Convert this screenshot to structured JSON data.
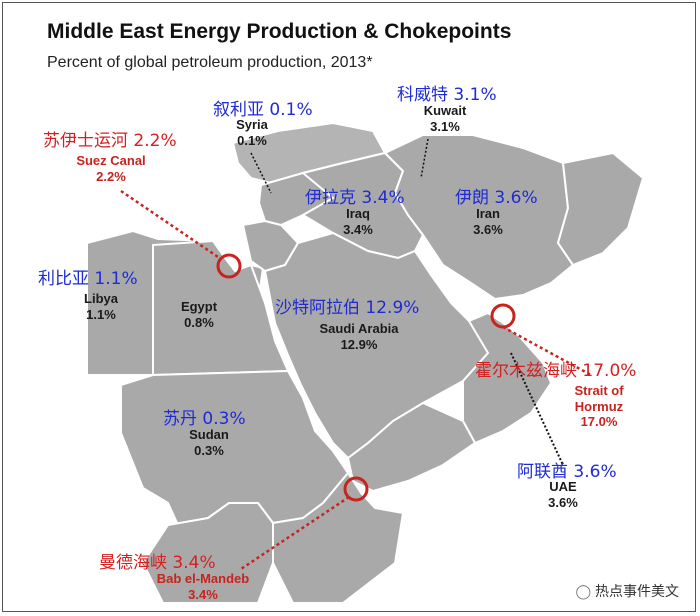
{
  "title": "Middle East Energy Production & Chokepoints",
  "subtitle": "Percent of global petroleum production, 2013*",
  "countries": {
    "syria": {
      "cn": "叙利亚 0.1%",
      "name": "Syria",
      "value": "0.1%"
    },
    "kuwait": {
      "cn": "科威特 3.1%",
      "name": "Kuwait",
      "value": "3.1%"
    },
    "iraq": {
      "cn": "伊拉克 3.4%",
      "name": "Iraq",
      "value": "3.4%"
    },
    "iran": {
      "cn": "伊朗 3.6%",
      "name": "Iran",
      "value": "3.6%"
    },
    "libya": {
      "cn": "利比亚 1.1%",
      "name": "Libya",
      "value": "1.1%"
    },
    "egypt": {
      "name": "Egypt",
      "value": "0.8%"
    },
    "saudi": {
      "cn": "沙特阿拉伯 12.9%",
      "name": "Saudi Arabia",
      "value": "12.9%"
    },
    "sudan": {
      "cn": "苏丹 0.3%",
      "name": "Sudan",
      "value": "0.3%"
    },
    "uae": {
      "cn": "阿联酋 3.6%",
      "name": "UAE",
      "value": "3.6%"
    }
  },
  "chokepoints": {
    "suez": {
      "cn": "苏伊士运河 2.2%",
      "name": "Suez Canal",
      "value": "2.2%"
    },
    "hormuz": {
      "cn": "霍尔木兹海峡 17.0%",
      "name_line1": "Strait of",
      "name_line2": "Hormuz",
      "value": "17.0%"
    },
    "mandeb": {
      "cn": "曼德海峡 3.4%",
      "name": "Bab el-Mandeb",
      "value": "3.4%"
    }
  },
  "watermark": "热点事件美文",
  "colors": {
    "land": "#a9a9a9",
    "sea": "#ffffff",
    "border": "#ffffff",
    "chinese": "#1f2bd4",
    "chokepoint": "#c8231e"
  }
}
